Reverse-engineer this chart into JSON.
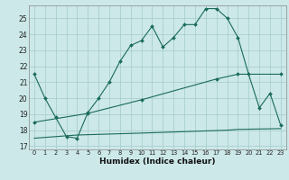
{
  "xlabel": "Humidex (Indice chaleur)",
  "background_color": "#cce8e8",
  "grid_color": "#aacfcf",
  "line_color": "#1a6b5a",
  "xlim": [
    -0.5,
    23.5
  ],
  "ylim": [
    16.8,
    25.8
  ],
  "yticks": [
    17,
    18,
    19,
    20,
    21,
    22,
    23,
    24,
    25
  ],
  "xticks": [
    0,
    1,
    2,
    3,
    4,
    5,
    6,
    7,
    8,
    9,
    10,
    11,
    12,
    13,
    14,
    15,
    16,
    17,
    18,
    19,
    20,
    21,
    22,
    23
  ],
  "series1_x": [
    0,
    1,
    2,
    3,
    4,
    5,
    6,
    7,
    8,
    9,
    10,
    11,
    12,
    13,
    14,
    15,
    16,
    17,
    18,
    19,
    20,
    21,
    22,
    23
  ],
  "series1_y": [
    21.5,
    20.0,
    18.8,
    17.6,
    17.5,
    19.1,
    20.0,
    21.0,
    22.3,
    23.3,
    23.6,
    24.5,
    23.2,
    23.8,
    24.6,
    24.6,
    25.6,
    25.6,
    25.0,
    23.8,
    21.5,
    19.4,
    20.3,
    18.3
  ],
  "series2_x": [
    0,
    5,
    10,
    17,
    19,
    23
  ],
  "series2_y": [
    18.5,
    19.05,
    19.9,
    21.2,
    21.5,
    21.5
  ],
  "series3_x": [
    0,
    4,
    10,
    18,
    19,
    23
  ],
  "series3_y": [
    17.5,
    17.7,
    17.82,
    18.0,
    18.05,
    18.1
  ]
}
